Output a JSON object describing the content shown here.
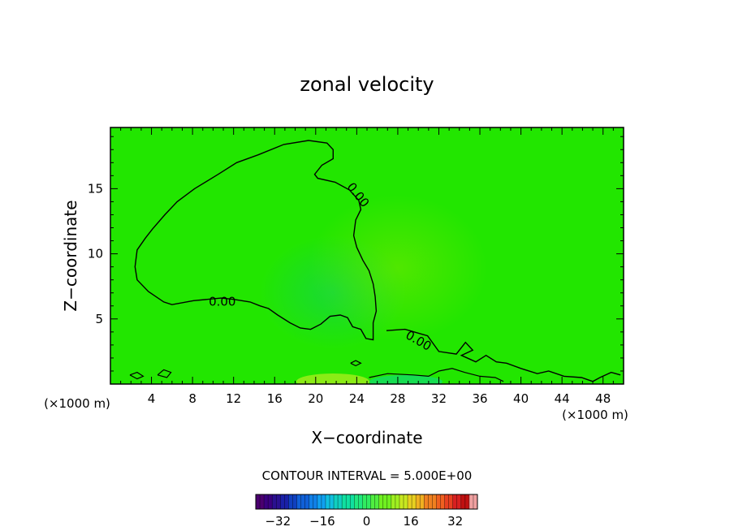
{
  "chart_data": {
    "type": "heatmap",
    "title": "zonal velocity",
    "xlabel": "X−coordinate",
    "ylabel": "Z−coordinate",
    "x_unit_left": "(×1000 m)",
    "x_unit_right": "(×1000 m)",
    "xlim": [
      0,
      50
    ],
    "ylim": [
      0,
      19.7
    ],
    "x_ticks": [
      4,
      8,
      12,
      16,
      20,
      24,
      28,
      32,
      36,
      40,
      44,
      48
    ],
    "y_ticks": [
      5,
      10,
      15
    ],
    "grid": false,
    "background_color": "#22e600",
    "zero_contour_label": "0.00",
    "contour_labels": [
      {
        "text": "0.00",
        "x": 24.1,
        "y": 14.5,
        "angle": 52
      },
      {
        "text": "0.00",
        "x": 10.9,
        "y": 6.3,
        "angle": 0
      },
      {
        "text": "0.00",
        "x": 30.0,
        "y": 3.3,
        "angle": 30
      }
    ],
    "zero_contour_main": [
      [
        13.6,
        6.3
      ],
      [
        12.0,
        6.5
      ],
      [
        10.8,
        6.6
      ],
      [
        8.1,
        6.4
      ],
      [
        6.0,
        6.1
      ],
      [
        5.2,
        6.3
      ],
      [
        3.7,
        7.1
      ],
      [
        2.6,
        8.0
      ],
      [
        2.4,
        9.0
      ],
      [
        2.6,
        10.3
      ],
      [
        3.4,
        11.2
      ],
      [
        4.1,
        11.9
      ],
      [
        5.3,
        13.0
      ],
      [
        6.5,
        14.0
      ],
      [
        8.2,
        15.0
      ],
      [
        10.5,
        16.1
      ],
      [
        12.3,
        17.0
      ],
      [
        14.4,
        17.6
      ],
      [
        16.9,
        18.4
      ],
      [
        19.3,
        18.7
      ],
      [
        21.1,
        18.5
      ],
      [
        21.7,
        18.0
      ],
      [
        21.7,
        17.3
      ],
      [
        20.6,
        16.8
      ],
      [
        19.9,
        16.1
      ],
      [
        20.2,
        15.8
      ],
      [
        21.9,
        15.5
      ],
      [
        23.3,
        14.9
      ],
      [
        24.2,
        14.1
      ],
      [
        24.4,
        13.4
      ],
      [
        23.9,
        12.6
      ],
      [
        23.7,
        11.4
      ],
      [
        24.0,
        10.5
      ],
      [
        24.6,
        9.5
      ],
      [
        25.2,
        8.7
      ],
      [
        25.6,
        7.7
      ],
      [
        25.8,
        6.7
      ],
      [
        25.9,
        5.6
      ],
      [
        25.6,
        4.7
      ],
      [
        25.6,
        3.4
      ],
      [
        24.9,
        3.5
      ],
      [
        24.4,
        4.2
      ],
      [
        23.6,
        4.4
      ],
      [
        23.1,
        5.1
      ],
      [
        22.4,
        5.3
      ],
      [
        21.4,
        5.2
      ],
      [
        20.5,
        4.6
      ],
      [
        19.5,
        4.2
      ],
      [
        18.5,
        4.3
      ],
      [
        17.5,
        4.7
      ],
      [
        16.3,
        5.3
      ],
      [
        15.4,
        5.8
      ],
      [
        14.6,
        6.0
      ],
      [
        13.6,
        6.3
      ]
    ],
    "zero_contour_right": [
      [
        26.9,
        4.1
      ],
      [
        28.7,
        4.2
      ],
      [
        30.9,
        3.7
      ],
      [
        32.0,
        2.5
      ],
      [
        33.7,
        2.3
      ],
      [
        34.6,
        3.2
      ],
      [
        35.3,
        2.6
      ],
      [
        34.2,
        2.2
      ],
      [
        35.6,
        1.7
      ],
      [
        36.6,
        2.2
      ],
      [
        37.6,
        1.7
      ],
      [
        38.6,
        1.6
      ],
      [
        40.0,
        1.2
      ],
      [
        41.6,
        0.8
      ],
      [
        42.7,
        1.0
      ],
      [
        44.2,
        0.6
      ],
      [
        45.9,
        0.5
      ],
      [
        47.0,
        0.2
      ],
      [
        47.7,
        0.5
      ],
      [
        48.8,
        0.9
      ],
      [
        49.7,
        0.7
      ]
    ],
    "zero_contour_small": [
      [
        [
          1.9,
          0.7
        ],
        [
          2.6,
          0.9
        ],
        [
          3.2,
          0.6
        ],
        [
          2.6,
          0.4
        ],
        [
          1.9,
          0.7
        ]
      ],
      [
        [
          4.6,
          0.7
        ],
        [
          5.2,
          1.1
        ],
        [
          5.9,
          0.9
        ],
        [
          5.5,
          0.5
        ],
        [
          4.6,
          0.7
        ]
      ],
      [
        [
          23.4,
          1.6
        ],
        [
          23.9,
          1.8
        ],
        [
          24.4,
          1.6
        ],
        [
          23.9,
          1.4
        ],
        [
          23.4,
          1.6
        ]
      ],
      [
        [
          25.2,
          0.5
        ],
        [
          27.0,
          0.8
        ],
        [
          29.5,
          0.7
        ],
        [
          31.0,
          0.6
        ],
        [
          32.0,
          1.0
        ],
        [
          33.3,
          1.2
        ],
        [
          34.5,
          0.9
        ],
        [
          36.0,
          0.6
        ],
        [
          37.5,
          0.5
        ],
        [
          38.3,
          0.2
        ]
      ]
    ],
    "colorbar": {
      "label": "CONTOUR INTERVAL = 5.000E+00",
      "min": -40,
      "max": 40,
      "ticks": [
        -32,
        -16,
        0,
        16,
        32
      ],
      "colors": [
        "#4b0070",
        "#3a0080",
        "#2a1090",
        "#1a20a8",
        "#1040c0",
        "#1060d8",
        "#1080e8",
        "#10a0f0",
        "#10c0e0",
        "#10d0c0",
        "#10e0a0",
        "#20e880",
        "#30ec60",
        "#50ee40",
        "#70f020",
        "#a0f020",
        "#c8e820",
        "#e8d020",
        "#f0b020",
        "#f08020",
        "#f06020",
        "#e84020",
        "#d82020",
        "#c01010",
        "#f0a0a0"
      ]
    }
  }
}
